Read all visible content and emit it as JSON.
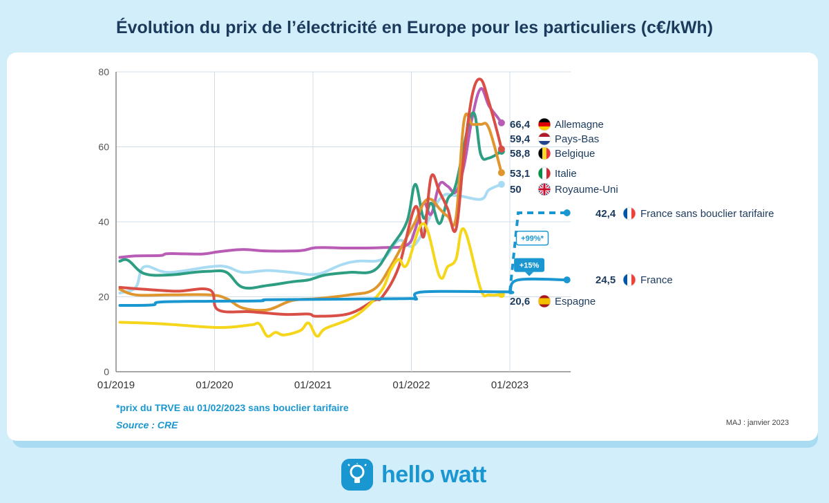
{
  "title": "Évolution du prix de l’électricité en Europe pour les particuliers (c€/kWh)",
  "footnote": "*prix du TRVE au 01/02/2023 sans bouclier tarifaire",
  "source": "Source : CRE",
  "update": "MAJ : janvier 2023",
  "brand": "hello watt",
  "colors": {
    "Allemagne": "#b95cb6",
    "Pays-Bas": "#d94f45",
    "Belgique": "#2e9e83",
    "Italie": "#e0962e",
    "Royaume-Uni": "#a9dcf3",
    "France": "#1a96d1",
    "Espagne": "#f5d61a"
  },
  "chart_data": {
    "type": "line",
    "title": "Évolution du prix de l’électricité en Europe pour les particuliers (c€/kWh)",
    "xlabel": "",
    "ylabel": "",
    "ylim": [
      0,
      80
    ],
    "xlim": [
      "2019-01-01",
      "2023-08-15"
    ],
    "yticks": [
      "0",
      "20",
      "40",
      "60",
      "80"
    ],
    "xticks": [
      "01/2019",
      "01/2020",
      "01/2021",
      "01/2022",
      "01/2023"
    ],
    "grid": true,
    "series": [
      {
        "name": "Allemagne",
        "end_label": "66,4",
        "flag": "de",
        "points": [
          [
            "2019-01",
            30.5
          ],
          [
            "2019-03",
            30.9
          ],
          [
            "2019-06",
            31.0
          ],
          [
            "2019-07",
            31.5
          ],
          [
            "2019-11",
            31.4
          ],
          [
            "2020-01",
            32.0
          ],
          [
            "2020-04",
            32.6
          ],
          [
            "2020-07",
            32.2
          ],
          [
            "2020-11",
            32.3
          ],
          [
            "2021-01",
            33.1
          ],
          [
            "2021-05",
            33.0
          ],
          [
            "2021-09",
            33.1
          ],
          [
            "2021-12",
            33.8
          ],
          [
            "2022-01",
            38.0
          ],
          [
            "2022-02",
            45.0
          ],
          [
            "2022-03",
            42.0
          ],
          [
            "2022-04",
            50.0
          ],
          [
            "2022-05",
            49.5
          ],
          [
            "2022-06",
            48.0
          ],
          [
            "2022-07",
            55.0
          ],
          [
            "2022-08",
            68.0
          ],
          [
            "2022-09",
            75.5
          ],
          [
            "2022-10",
            71.0
          ],
          [
            "2022-11",
            68.0
          ],
          [
            "2022-12-01",
            66.4
          ]
        ]
      },
      {
        "name": "Pays-Bas",
        "end_label": "59,4",
        "flag": "nl",
        "points": [
          [
            "2019-01",
            22.5
          ],
          [
            "2019-04",
            22.0
          ],
          [
            "2019-08",
            21.5
          ],
          [
            "2019-12",
            21.8
          ],
          [
            "2020-01",
            16.5
          ],
          [
            "2020-05",
            16.0
          ],
          [
            "2020-09",
            15.3
          ],
          [
            "2020-12",
            15.4
          ],
          [
            "2021-01",
            14.8
          ],
          [
            "2021-05",
            15.5
          ],
          [
            "2021-08",
            19.0
          ],
          [
            "2021-09",
            20.0
          ],
          [
            "2021-11",
            28.0
          ],
          [
            "2022-01",
            44.0
          ],
          [
            "2022-02",
            36.0
          ],
          [
            "2022-03",
            52.0
          ],
          [
            "2022-04",
            48.0
          ],
          [
            "2022-05",
            43.5
          ],
          [
            "2022-06",
            38.0
          ],
          [
            "2022-07",
            58.0
          ],
          [
            "2022-08",
            74.0
          ],
          [
            "2022-09",
            78.0
          ],
          [
            "2022-10",
            72.0
          ],
          [
            "2022-11",
            64.0
          ],
          [
            "2022-12-01",
            59.4
          ]
        ]
      },
      {
        "name": "Belgique",
        "end_label": "58,8",
        "flag": "be",
        "points": [
          [
            "2019-01",
            29.5
          ],
          [
            "2019-02",
            29.7
          ],
          [
            "2019-04",
            26.2
          ],
          [
            "2019-07",
            25.8
          ],
          [
            "2019-10",
            26.5
          ],
          [
            "2019-12",
            26.8
          ],
          [
            "2020-02",
            26.5
          ],
          [
            "2020-04",
            22.5
          ],
          [
            "2020-07",
            23.0
          ],
          [
            "2020-10",
            24.0
          ],
          [
            "2020-12",
            24.5
          ],
          [
            "2021-02",
            25.8
          ],
          [
            "2021-05",
            26.5
          ],
          [
            "2021-08",
            27.0
          ],
          [
            "2021-10",
            33.0
          ],
          [
            "2021-12",
            40.0
          ],
          [
            "2022-01",
            50.0
          ],
          [
            "2022-02",
            41.0
          ],
          [
            "2022-03",
            45.0
          ],
          [
            "2022-04",
            39.5
          ],
          [
            "2022-05",
            46.0
          ],
          [
            "2022-06",
            50.0
          ],
          [
            "2022-08",
            69.0
          ],
          [
            "2022-09",
            58.0
          ],
          [
            "2022-10",
            57.0
          ],
          [
            "2022-12-01",
            58.8
          ]
        ]
      },
      {
        "name": "Italie",
        "end_label": "53,1",
        "flag": "it",
        "points": [
          [
            "2019-01",
            22.0
          ],
          [
            "2019-03",
            20.5
          ],
          [
            "2019-07",
            20.5
          ],
          [
            "2019-12",
            20.5
          ],
          [
            "2020-02",
            19.5
          ],
          [
            "2020-04",
            17.0
          ],
          [
            "2020-07",
            16.5
          ],
          [
            "2020-10",
            19.0
          ],
          [
            "2021-01",
            19.5
          ],
          [
            "2021-05",
            20.5
          ],
          [
            "2021-08",
            22.0
          ],
          [
            "2021-10",
            28.0
          ],
          [
            "2021-12",
            36.0
          ],
          [
            "2022-01",
            40.0
          ],
          [
            "2022-02",
            45.0
          ],
          [
            "2022-03",
            46.0
          ],
          [
            "2022-04",
            43.5
          ],
          [
            "2022-05",
            41.5
          ],
          [
            "2022-06",
            41.0
          ],
          [
            "2022-07",
            67.0
          ],
          [
            "2022-08",
            66.0
          ],
          [
            "2022-09",
            66.0
          ],
          [
            "2022-10",
            65.0
          ],
          [
            "2022-12-01",
            53.1
          ]
        ]
      },
      {
        "name": "Royaume-Uni",
        "end_label": "50",
        "flag": "uk",
        "points": [
          [
            "2019-01",
            21.0
          ],
          [
            "2019-03",
            22.5
          ],
          [
            "2019-04",
            28.0
          ],
          [
            "2019-07",
            26.5
          ],
          [
            "2019-12",
            28.0
          ],
          [
            "2020-02",
            28.0
          ],
          [
            "2020-04",
            26.5
          ],
          [
            "2020-07",
            27.0
          ],
          [
            "2020-10",
            26.5
          ],
          [
            "2021-01",
            26.0
          ],
          [
            "2021-04",
            28.5
          ],
          [
            "2021-06",
            29.5
          ],
          [
            "2021-09",
            30.0
          ],
          [
            "2021-11",
            35.0
          ],
          [
            "2022-01",
            34.0
          ],
          [
            "2022-04",
            46.0
          ],
          [
            "2022-06",
            47.0
          ],
          [
            "2022-09",
            46.0
          ],
          [
            "2022-10",
            48.5
          ],
          [
            "2022-12-01",
            50.0
          ]
        ]
      },
      {
        "name": "Espagne",
        "end_label": "20,6",
        "flag": "es",
        "points": [
          [
            "2019-01",
            13.2
          ],
          [
            "2019-06",
            12.8
          ],
          [
            "2020-01",
            11.8
          ],
          [
            "2020-05",
            12.5
          ],
          [
            "2020-06",
            12.8
          ],
          [
            "2020-07",
            9.5
          ],
          [
            "2020-08",
            10.5
          ],
          [
            "2020-09",
            9.8
          ],
          [
            "2020-11",
            11.0
          ],
          [
            "2020-12",
            13.0
          ],
          [
            "2021-01",
            9.5
          ],
          [
            "2021-02",
            11.5
          ],
          [
            "2021-05",
            14.0
          ],
          [
            "2021-07",
            17.0
          ],
          [
            "2021-09",
            22.0
          ],
          [
            "2021-10",
            27.0
          ],
          [
            "2021-11",
            30.0
          ],
          [
            "2021-12",
            28.5
          ],
          [
            "2022-02",
            39.5
          ],
          [
            "2022-04",
            25.5
          ],
          [
            "2022-05",
            28.0
          ],
          [
            "2022-06",
            30.0
          ],
          [
            "2022-07",
            38.0
          ],
          [
            "2022-09",
            22.0
          ],
          [
            "2022-10",
            20.5
          ],
          [
            "2022-12-01",
            20.6
          ]
        ]
      },
      {
        "name": "France",
        "end_label": "24,5",
        "flag": "fr",
        "points": [
          [
            "2019-01",
            17.7
          ],
          [
            "2019-05",
            17.8
          ],
          [
            "2019-06",
            18.6
          ],
          [
            "2019-12",
            18.8
          ],
          [
            "2020-06",
            18.9
          ],
          [
            "2020-07",
            19.2
          ],
          [
            "2021-01",
            19.3
          ],
          [
            "2021-12",
            19.5
          ],
          [
            "2022-01",
            19.5
          ],
          [
            "2022-02",
            21.3
          ],
          [
            "2022-12",
            21.3
          ],
          [
            "2023-01-01",
            21.3
          ],
          [
            "2023-02-01",
            24.5
          ],
          [
            "2023-08-01",
            24.5
          ]
        ]
      }
    ],
    "annotations": [
      {
        "series": "France sans bouclier tarifaire",
        "label": "42,4",
        "flag": "fr",
        "text": "+99%*",
        "points": [
          [
            "2023-01-01",
            21.3
          ],
          [
            "2023-02-01",
            42.4
          ],
          [
            "2023-08-01",
            42.4
          ]
        ],
        "style": "dashed"
      },
      {
        "series": "France",
        "text": "+15%"
      }
    ]
  }
}
